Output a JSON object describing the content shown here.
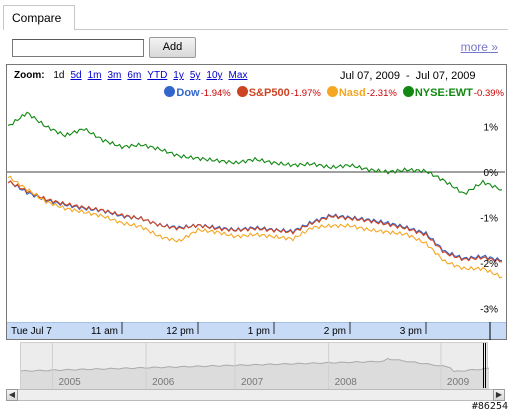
{
  "tab": {
    "label": "Compare"
  },
  "compare": {
    "input_value": "",
    "add_label": "Add",
    "more_label": "more »"
  },
  "zoom": {
    "label": "Zoom:",
    "options": [
      "1d",
      "5d",
      "1m",
      "3m",
      "6m",
      "YTD",
      "1y",
      "5y",
      "10y",
      "Max"
    ],
    "selected": "1d"
  },
  "date_range": {
    "start": "Jul 07, 2009",
    "separator": "-",
    "end": "Jul 07, 2009"
  },
  "legend": [
    {
      "name": "Dow",
      "change": "-1.94%",
      "color": "#3366cc"
    },
    {
      "name": "S&P500",
      "change": "-1.97%",
      "color": "#cc4422"
    },
    {
      "name": "Nasd",
      "change": "-2.31%",
      "color": "#f5a623"
    },
    {
      "name": "NYSE:EWT",
      "change": "-0.39%",
      "color": "#118811"
    }
  ],
  "colors": {
    "timebar": "#c7dbf6",
    "zero_line": "#000000"
  },
  "chart_data": {
    "type": "line",
    "title": "",
    "xlabel": "",
    "ylabel": "",
    "x_tick_labels": [
      "Tue Jul 7",
      "11 am",
      "12 pm",
      "1 pm",
      "2 pm",
      "3 pm"
    ],
    "x_tick_positions": [
      9.5,
      11,
      12,
      13,
      14,
      15
    ],
    "xlim": [
      9.5,
      16
    ],
    "y_tick_labels": [
      "1%",
      "0%",
      "-1%",
      "-2%",
      "-3%"
    ],
    "y_ticks": [
      1,
      0,
      -1,
      -2,
      -3
    ],
    "ylim": [
      -3.25,
      1.45
    ],
    "grid": false,
    "x": [
      9.5,
      9.75,
      10.0,
      10.25,
      10.5,
      10.75,
      11.0,
      11.25,
      11.5,
      11.75,
      12.0,
      12.25,
      12.5,
      12.75,
      13.0,
      13.25,
      13.5,
      13.75,
      14.0,
      14.25,
      14.5,
      14.75,
      15.0,
      15.25,
      15.5,
      15.75,
      16.0
    ],
    "series": [
      {
        "name": "Dow",
        "color": "#3366cc",
        "values": [
          -0.2,
          -0.45,
          -0.62,
          -0.72,
          -0.8,
          -0.85,
          -0.97,
          -1.02,
          -1.17,
          -1.22,
          -1.17,
          -1.22,
          -1.27,
          -1.22,
          -1.27,
          -1.3,
          -1.1,
          -0.95,
          -1.0,
          -1.05,
          -1.12,
          -1.22,
          -1.35,
          -1.75,
          -1.9,
          -1.85,
          -1.94
        ]
      },
      {
        "name": "S&P500",
        "color": "#cc4422",
        "values": [
          -0.2,
          -0.42,
          -0.6,
          -0.7,
          -0.78,
          -0.84,
          -0.95,
          -1.02,
          -1.17,
          -1.24,
          -1.17,
          -1.24,
          -1.28,
          -1.24,
          -1.28,
          -1.32,
          -1.12,
          -0.97,
          -1.02,
          -1.07,
          -1.15,
          -1.24,
          -1.38,
          -1.78,
          -1.92,
          -1.88,
          -1.97
        ]
      },
      {
        "name": "Nasd",
        "color": "#f5a623",
        "values": [
          -0.1,
          -0.38,
          -0.65,
          -0.8,
          -0.88,
          -0.97,
          -1.12,
          -1.2,
          -1.42,
          -1.52,
          -1.27,
          -1.32,
          -1.42,
          -1.37,
          -1.42,
          -1.47,
          -1.22,
          -1.18,
          -1.18,
          -1.27,
          -1.32,
          -1.37,
          -1.57,
          -1.97,
          -2.12,
          -2.12,
          -2.31
        ]
      },
      {
        "name": "NYSE:EWT",
        "color": "#118811",
        "values": [
          1.0,
          1.3,
          1.0,
          0.8,
          0.95,
          0.7,
          0.55,
          0.6,
          0.5,
          0.35,
          0.3,
          0.25,
          0.2,
          0.28,
          0.2,
          0.15,
          0.18,
          0.1,
          0.15,
          0.05,
          0.0,
          0.05,
          0.02,
          -0.2,
          -0.48,
          -0.22,
          -0.39
        ]
      }
    ]
  },
  "overview": {
    "years": [
      "2005",
      "2006",
      "2007",
      "2008",
      "2009"
    ],
    "year_positions": [
      0.11,
      0.31,
      0.5,
      0.7,
      0.94
    ]
  },
  "scroll": {
    "left_icon": "arrow-left-icon",
    "right_icon": "arrow-right-icon"
  },
  "watermark": "#86254"
}
